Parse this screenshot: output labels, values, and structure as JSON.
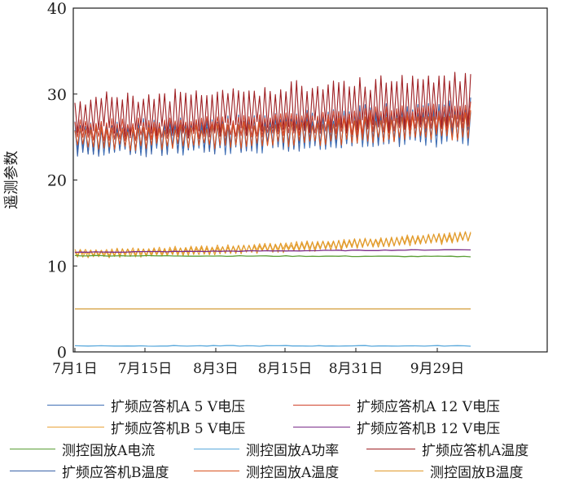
{
  "chart_data": {
    "type": "line",
    "title": "",
    "xlabel": "",
    "ylabel": "遥测参数",
    "ylim": [
      0,
      40
    ],
    "yticks": [
      "0",
      "10",
      "20",
      "30",
      "40"
    ],
    "xticks": [
      "7月1日",
      "7月15日",
      "8月3日",
      "8月15日",
      "8月31日",
      "9月29日"
    ],
    "grid": false,
    "legend_placement": "bottom",
    "series": [
      {
        "name": "扩频应答机A 5 V电压",
        "color": "#3f6fb5",
        "style": "oscillating",
        "base_start": 24.7,
        "base_end": 26.5,
        "amplitude": 3.8
      },
      {
        "name": "扩频应答机A 12 V电压",
        "color": "#d0432b",
        "style": "oscillating",
        "base_start": 25.8,
        "base_end": 27.5,
        "amplitude": 2.5
      },
      {
        "name": "扩频应答机B 5 V电压",
        "color": "#e8a33a",
        "style": "oscillating",
        "base_start": 11.6,
        "base_end": 13.5,
        "amplitude": 0.9
      },
      {
        "name": "扩频应答机B 12 V电压",
        "color": "#7b2d8a",
        "style": "flat",
        "start": 11.6,
        "end": 11.9
      },
      {
        "name": "测控固放A电流",
        "color": "#5a9e35",
        "style": "flat",
        "start": 11.2,
        "end": 11.1
      },
      {
        "name": "测控固放A功率",
        "color": "#5aa9dc",
        "style": "flat",
        "start": 0.7,
        "end": 0.7
      },
      {
        "name": "扩频应答机A温度",
        "color": "#9e1f23",
        "style": "oscillating",
        "base_start": 27.6,
        "base_end": 29.5,
        "amplitude": 5.2
      },
      {
        "name": "扩频应答机B温度",
        "color": "#3a63a8",
        "style": "oscillating",
        "base_start": 24.8,
        "base_end": 27.2,
        "amplitude": 4.2
      },
      {
        "name": "测控固放A温度",
        "color": "#d9521f",
        "style": "oscillating",
        "base_start": 24.8,
        "base_end": 26.5,
        "amplitude": 2.7
      },
      {
        "name": "测控固放B温度",
        "color": "#e09a2a",
        "style": "oscillating",
        "base_start": 11.4,
        "base_end": 13.4,
        "amplitude": 1.0
      }
    ],
    "flat_line_5v": {
      "value": 5.0
    }
  }
}
